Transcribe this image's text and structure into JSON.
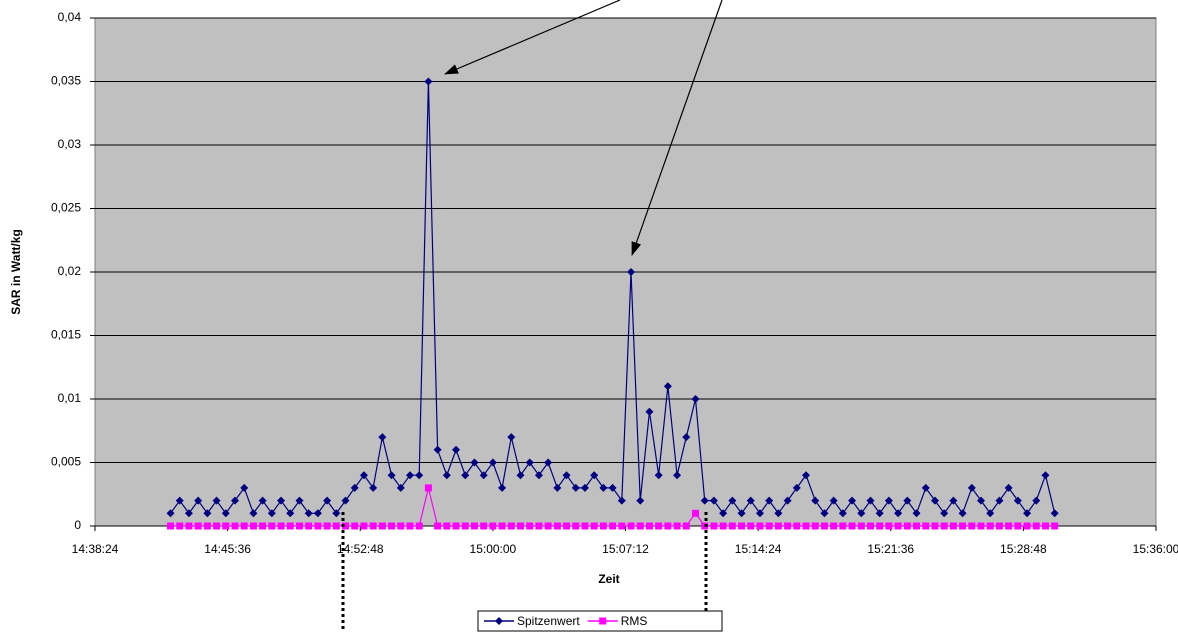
{
  "chart_data": {
    "type": "line",
    "xlabel": "Zeit",
    "ylabel": "SAR in Watt/kg",
    "x": [
      52950,
      52980,
      53010,
      53040,
      53070,
      53100,
      53130,
      53160,
      53190,
      53220,
      53250,
      53280,
      53310,
      53340,
      53370,
      53400,
      53430,
      53460,
      53490,
      53520,
      53550,
      53580,
      53610,
      53640,
      53670,
      53700,
      53730,
      53760,
      53790,
      53820,
      53850,
      53880,
      53910,
      53940,
      53970,
      54000,
      54030,
      54060,
      54090,
      54120,
      54150,
      54180,
      54210,
      54240,
      54270,
      54300,
      54330,
      54360,
      54390,
      54420,
      54450,
      54480,
      54510,
      54540,
      54570,
      54600,
      54630,
      54660,
      54690,
      54720,
      54750,
      54780,
      54810,
      54840,
      54870,
      54900,
      54930,
      54960,
      54990,
      55020,
      55050,
      55080,
      55110,
      55140,
      55170,
      55200,
      55230,
      55260,
      55290,
      55320,
      55350,
      55380,
      55410,
      55440,
      55470,
      55500,
      55530,
      55560,
      55590,
      55620,
      55650,
      55680,
      55710,
      55740,
      55770,
      55800,
      55830
    ],
    "series": [
      {
        "name": "Spitzenwert",
        "color": "#000080",
        "marker": "diamond",
        "values": [
          0.001,
          0.002,
          0.001,
          0.002,
          0.001,
          0.002,
          0.001,
          0.002,
          0.003,
          0.001,
          0.002,
          0.001,
          0.002,
          0.001,
          0.002,
          0.001,
          0.001,
          0.002,
          0.001,
          0.002,
          0.003,
          0.004,
          0.003,
          0.007,
          0.004,
          0.003,
          0.004,
          0.004,
          0.035,
          0.006,
          0.004,
          0.006,
          0.004,
          0.005,
          0.004,
          0.005,
          0.003,
          0.007,
          0.004,
          0.005,
          0.004,
          0.005,
          0.003,
          0.004,
          0.003,
          0.003,
          0.004,
          0.003,
          0.003,
          0.002,
          0.02,
          0.002,
          0.009,
          0.004,
          0.011,
          0.004,
          0.007,
          0.01,
          0.002,
          0.002,
          0.001,
          0.002,
          0.001,
          0.002,
          0.001,
          0.002,
          0.001,
          0.002,
          0.003,
          0.004,
          0.002,
          0.001,
          0.002,
          0.001,
          0.002,
          0.001,
          0.002,
          0.001,
          0.002,
          0.001,
          0.002,
          0.001,
          0.003,
          0.002,
          0.001,
          0.002,
          0.001,
          0.003,
          0.002,
          0.001,
          0.002,
          0.003,
          0.002,
          0.001,
          0.002,
          0.004,
          0.001
        ]
      },
      {
        "name": "RMS",
        "color": "#ff00ff",
        "marker": "square",
        "values": [
          0,
          0,
          0,
          0,
          0,
          0,
          0,
          0,
          0,
          0,
          0,
          0,
          0,
          0,
          0,
          0,
          0,
          0,
          0,
          0,
          0,
          0,
          0,
          0,
          0,
          0,
          0,
          0,
          0.003,
          0,
          0,
          0,
          0,
          0,
          0,
          0,
          0,
          0,
          0,
          0,
          0,
          0,
          0,
          0,
          0,
          0,
          0,
          0,
          0,
          0,
          0,
          0,
          0,
          0,
          0,
          0,
          0,
          0.001,
          0,
          0,
          0,
          0,
          0,
          0,
          0,
          0,
          0,
          0,
          0,
          0,
          0,
          0,
          0,
          0,
          0,
          0,
          0,
          0,
          0,
          0,
          0,
          0,
          0,
          0,
          0,
          0,
          0,
          0,
          0,
          0,
          0,
          0,
          0,
          0,
          0,
          0,
          0
        ]
      }
    ],
    "xlim": [
      52704,
      56160
    ],
    "xticks": [
      {
        "value": 52704,
        "label": "14:38:24"
      },
      {
        "value": 53136,
        "label": "14:45:36"
      },
      {
        "value": 53568,
        "label": "14:52:48"
      },
      {
        "value": 54000,
        "label": "15:00:00"
      },
      {
        "value": 54432,
        "label": "15:07:12"
      },
      {
        "value": 54864,
        "label": "15:14:24"
      },
      {
        "value": 55296,
        "label": "15:21:36"
      },
      {
        "value": 55728,
        "label": "15:28:48"
      },
      {
        "value": 56160,
        "label": "15:36:00"
      }
    ],
    "ylim": [
      0,
      0.04
    ],
    "yticks": [
      0,
      {
        "value": 0.005,
        "label": "0,005"
      },
      {
        "value": 0.01,
        "label": "0,01"
      },
      {
        "value": 0.015,
        "label": "0,015"
      },
      {
        "value": 0.02,
        "label": "0,02"
      },
      {
        "value": 0.025,
        "label": "0,025"
      },
      {
        "value": 0.03,
        "label": "0,03"
      },
      {
        "value": 0.035,
        "label": "0,035"
      },
      {
        "value": 0.04,
        "label": "0,04"
      }
    ],
    "grid": true,
    "legend": "bottom"
  }
}
